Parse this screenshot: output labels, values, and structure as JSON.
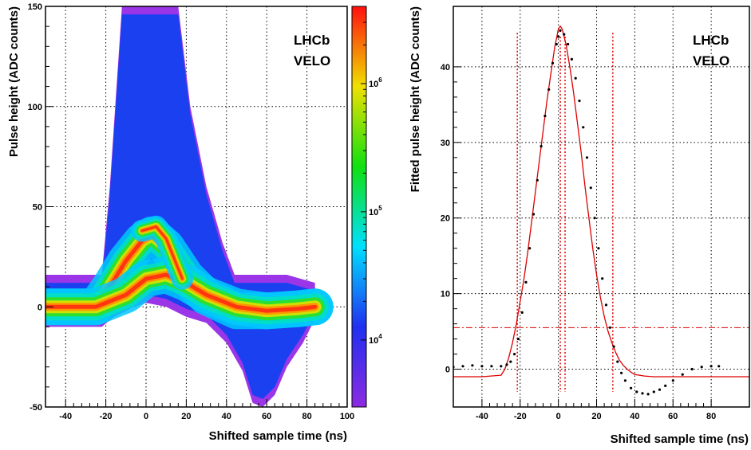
{
  "chart_data": [
    {
      "type": "heatmap",
      "xlabel": "Shifted sample time (ns)",
      "ylabel": "Pulse height (ADC counts)",
      "xlim": [
        -50,
        100
      ],
      "ylim": [
        -50,
        150
      ],
      "x_ticks": [
        -40,
        -20,
        0,
        20,
        40,
        60,
        80,
        100
      ],
      "y_ticks": [
        -50,
        0,
        50,
        100,
        150
      ],
      "z_scale": "log",
      "z_ticks": [
        {
          "label": "10",
          "exp": "4",
          "value": 10000
        },
        {
          "label": "10",
          "exp": "5",
          "value": 100000
        },
        {
          "label": "10",
          "exp": "6",
          "value": 1000000
        }
      ],
      "zlim": [
        3000,
        4000000
      ],
      "annotation": [
        "LHCb",
        "VELO"
      ],
      "grid": true,
      "ridges": [
        {
          "x": [
            -50,
            -25,
            -18,
            -10,
            -2,
            3,
            10,
            20,
            30,
            45,
            60,
            75,
            84
          ],
          "y": [
            0,
            0,
            10,
            23,
            33,
            36,
            30,
            15,
            5,
            -2,
            -2,
            -1,
            0
          ]
        },
        {
          "x": [
            -50,
            -25,
            -10,
            0,
            10,
            20,
            30,
            45,
            60,
            75,
            84
          ],
          "y": [
            0,
            0,
            6,
            14,
            16,
            12,
            6,
            0,
            -2,
            -1,
            0
          ]
        },
        {
          "x": [
            -2,
            5,
            10,
            14,
            18
          ],
          "y": [
            38,
            40,
            34,
            24,
            14
          ]
        }
      ],
      "band_edges": {
        "upper": {
          "x": [
            -50,
            -30,
            -22,
            -18,
            -12,
            -8,
            0,
            8,
            16,
            22,
            30,
            38,
            44,
            70,
            84
          ],
          "y": [
            16,
            16,
            16,
            60,
            150,
            150,
            150,
            150,
            150,
            100,
            60,
            32,
            16,
            16,
            12
          ]
        },
        "lower": {
          "x": [
            -50,
            -28,
            -22,
            -16,
            -6,
            0,
            10,
            20,
            30,
            40,
            48,
            53,
            58,
            64,
            70,
            78,
            84
          ],
          "y": [
            -10,
            -10,
            -10,
            -5,
            0,
            2,
            0,
            -5,
            -8,
            -18,
            -32,
            -48,
            -50,
            -44,
            -30,
            -18,
            -6
          ]
        }
      }
    },
    {
      "type": "line",
      "xlabel": "Shifted sample time (ns)",
      "ylabel": "Fitted pulse height (ADC counts)",
      "xlim": [
        -55,
        100
      ],
      "ylim": [
        -5,
        48
      ],
      "x_ticks": [
        -40,
        -20,
        0,
        20,
        40,
        60,
        80
      ],
      "y_ticks": [
        0,
        10,
        20,
        30,
        40
      ],
      "annotation": [
        "LHCb",
        "VELO"
      ],
      "grid": true,
      "series": [
        {
          "style": "points",
          "color": "#000000",
          "x": [
            -55,
            -50,
            -45,
            -40,
            -35,
            -30,
            -27,
            -25,
            -23,
            -21,
            -19,
            -17,
            -15,
            -13,
            -11,
            -9,
            -7,
            -5,
            -3,
            -1,
            0,
            1,
            3,
            5,
            7,
            9,
            11,
            13,
            15,
            17,
            19,
            21,
            23,
            25,
            27,
            29,
            31,
            33,
            35,
            38,
            41,
            44,
            47,
            50,
            53,
            56,
            60,
            65,
            70,
            75,
            80,
            84
          ],
          "y": [
            0.3,
            0.4,
            0.5,
            0.4,
            0.4,
            0.4,
            0.6,
            1.0,
            2.0,
            4.0,
            7.5,
            11.5,
            16.0,
            20.5,
            25.0,
            29.5,
            33.5,
            37.0,
            40.5,
            43.0,
            44.0,
            44.8,
            44.3,
            43.0,
            41.0,
            38.5,
            35.5,
            32.0,
            28.0,
            24.0,
            20.0,
            16.0,
            12.0,
            8.5,
            5.5,
            3.0,
            1.0,
            -0.5,
            -1.5,
            -2.5,
            -3.0,
            -3.2,
            -3.3,
            -3.0,
            -2.7,
            -2.2,
            -1.5,
            -0.7,
            0.0,
            0.3,
            0.4,
            0.4
          ]
        },
        {
          "style": "line",
          "color": "#dd0000",
          "x": [
            -55,
            -40,
            -30,
            -28,
            -26,
            -24,
            -22,
            -20,
            -18,
            -16,
            -14,
            -12,
            -10,
            -8,
            -6,
            -4,
            -2,
            0,
            1,
            2,
            4,
            6,
            8,
            10,
            12,
            14,
            16,
            18,
            20,
            22,
            24,
            26,
            28,
            30,
            32,
            34,
            36,
            38,
            40,
            45,
            50,
            60,
            80,
            100
          ],
          "y": [
            -1.0,
            -1.0,
            -0.8,
            0.0,
            1.5,
            3.5,
            6.0,
            9.0,
            12.0,
            15.5,
            19.5,
            23.5,
            27.5,
            31.5,
            35.5,
            39.0,
            42.5,
            45.0,
            45.4,
            45.0,
            43.0,
            40.0,
            36.5,
            32.5,
            28.5,
            24.0,
            20.0,
            16.0,
            12.5,
            9.5,
            7.0,
            5.0,
            3.5,
            2.2,
            1.2,
            0.5,
            0.0,
            -0.4,
            -0.7,
            -0.9,
            -1.0,
            -1.0,
            -1.0,
            -1.0
          ]
        }
      ],
      "vlines": [
        {
          "x": -21.5,
          "y0": -3,
          "y1": 44.5,
          "color": "#dd0000"
        },
        {
          "x": 1,
          "y0": -3,
          "y1": 44,
          "color": "#dd0000"
        },
        {
          "x": 3.5,
          "y0": -3,
          "y1": 44,
          "color": "#dd0000"
        },
        {
          "x": 28.5,
          "y0": -3,
          "y1": 44.5,
          "color": "#dd0000"
        }
      ],
      "hlines": [
        {
          "y": 5.5,
          "x0": -55,
          "x1": 100,
          "color": "#dd0000",
          "dash": "dash-dot"
        }
      ]
    }
  ]
}
